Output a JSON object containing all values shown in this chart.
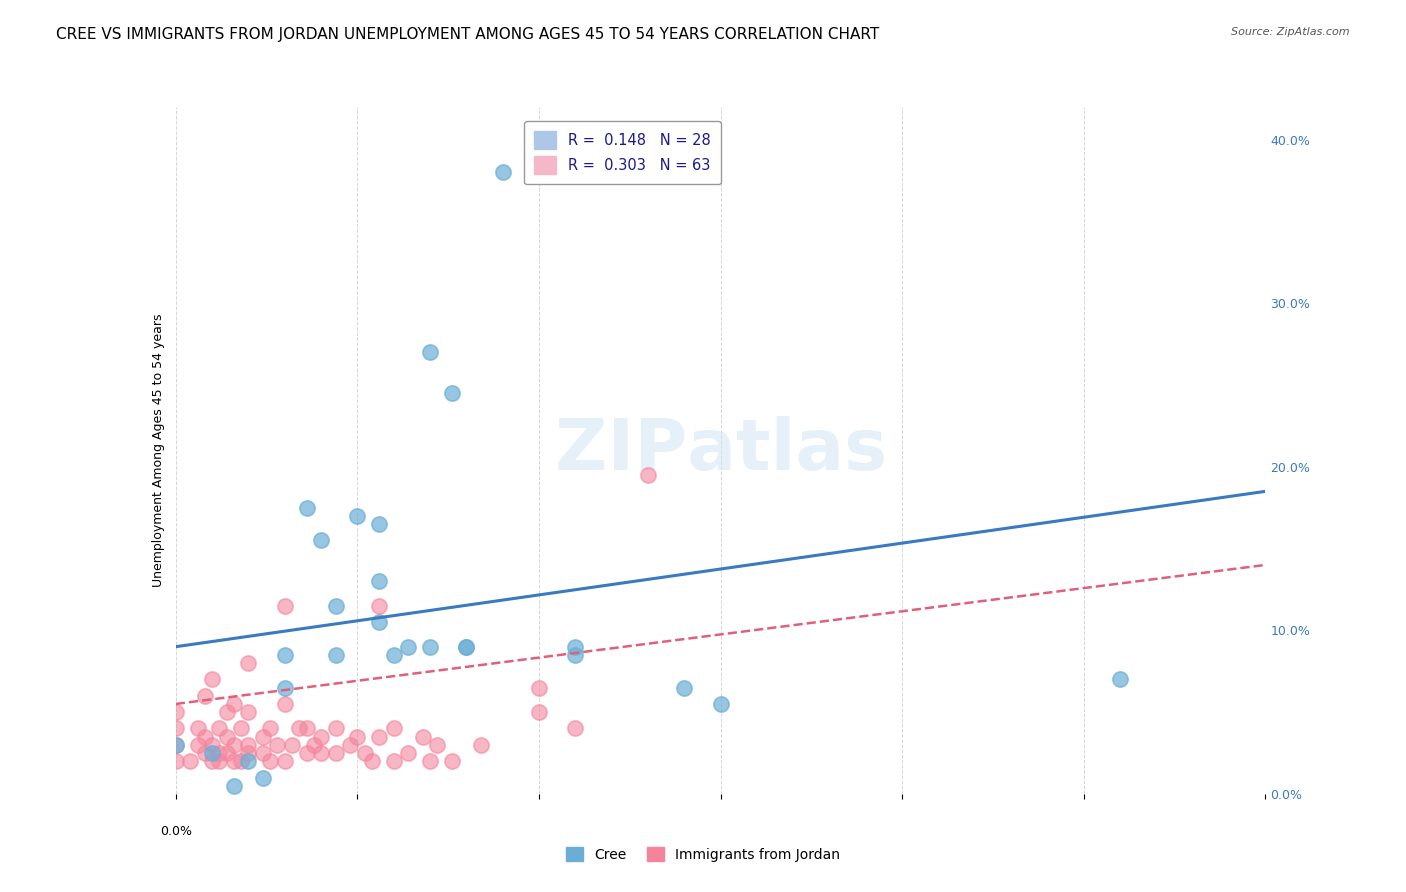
{
  "title": "CREE VS IMMIGRANTS FROM JORDAN UNEMPLOYMENT AMONG AGES 45 TO 54 YEARS CORRELATION CHART",
  "source": "Source: ZipAtlas.com",
  "ylabel": "Unemployment Among Ages 45 to 54 years",
  "ylabel_right_ticks": [
    "0.0%",
    "10.0%",
    "20.0%",
    "30.0%",
    "40.0%"
  ],
  "ylabel_right_vals": [
    0.0,
    0.1,
    0.2,
    0.3,
    0.4
  ],
  "xlim": [
    0.0,
    0.15
  ],
  "ylim": [
    0.0,
    0.42
  ],
  "cree_color": "#6aaed6",
  "jordan_color": "#f4849c",
  "cree_line_color": "#3a7abf",
  "jordan_line_color": "#e0607a",
  "cree_scatter": [
    [
      0.0,
      0.03
    ],
    [
      0.01,
      0.02
    ],
    [
      0.005,
      0.025
    ],
    [
      0.008,
      0.005
    ],
    [
      0.012,
      0.01
    ],
    [
      0.015,
      0.065
    ],
    [
      0.015,
      0.085
    ],
    [
      0.018,
      0.175
    ],
    [
      0.02,
      0.155
    ],
    [
      0.022,
      0.085
    ],
    [
      0.022,
      0.115
    ],
    [
      0.025,
      0.17
    ],
    [
      0.028,
      0.13
    ],
    [
      0.028,
      0.105
    ],
    [
      0.028,
      0.165
    ],
    [
      0.03,
      0.085
    ],
    [
      0.032,
      0.09
    ],
    [
      0.035,
      0.09
    ],
    [
      0.035,
      0.27
    ],
    [
      0.038,
      0.245
    ],
    [
      0.04,
      0.09
    ],
    [
      0.04,
      0.09
    ],
    [
      0.045,
      0.38
    ],
    [
      0.055,
      0.09
    ],
    [
      0.055,
      0.085
    ],
    [
      0.07,
      0.065
    ],
    [
      0.075,
      0.055
    ],
    [
      0.13,
      0.07
    ]
  ],
  "jordan_scatter": [
    [
      0.0,
      0.02
    ],
    [
      0.0,
      0.03
    ],
    [
      0.0,
      0.04
    ],
    [
      0.0,
      0.05
    ],
    [
      0.002,
      0.02
    ],
    [
      0.003,
      0.03
    ],
    [
      0.003,
      0.04
    ],
    [
      0.004,
      0.025
    ],
    [
      0.004,
      0.035
    ],
    [
      0.004,
      0.06
    ],
    [
      0.005,
      0.02
    ],
    [
      0.005,
      0.03
    ],
    [
      0.005,
      0.07
    ],
    [
      0.006,
      0.02
    ],
    [
      0.006,
      0.025
    ],
    [
      0.006,
      0.04
    ],
    [
      0.007,
      0.025
    ],
    [
      0.007,
      0.035
    ],
    [
      0.007,
      0.05
    ],
    [
      0.008,
      0.02
    ],
    [
      0.008,
      0.03
    ],
    [
      0.008,
      0.055
    ],
    [
      0.009,
      0.02
    ],
    [
      0.009,
      0.04
    ],
    [
      0.01,
      0.025
    ],
    [
      0.01,
      0.03
    ],
    [
      0.01,
      0.05
    ],
    [
      0.01,
      0.08
    ],
    [
      0.012,
      0.025
    ],
    [
      0.012,
      0.035
    ],
    [
      0.013,
      0.02
    ],
    [
      0.013,
      0.04
    ],
    [
      0.014,
      0.03
    ],
    [
      0.015,
      0.02
    ],
    [
      0.015,
      0.055
    ],
    [
      0.015,
      0.115
    ],
    [
      0.016,
      0.03
    ],
    [
      0.017,
      0.04
    ],
    [
      0.018,
      0.025
    ],
    [
      0.018,
      0.04
    ],
    [
      0.019,
      0.03
    ],
    [
      0.02,
      0.025
    ],
    [
      0.02,
      0.035
    ],
    [
      0.022,
      0.025
    ],
    [
      0.022,
      0.04
    ],
    [
      0.024,
      0.03
    ],
    [
      0.025,
      0.035
    ],
    [
      0.026,
      0.025
    ],
    [
      0.027,
      0.02
    ],
    [
      0.028,
      0.035
    ],
    [
      0.028,
      0.115
    ],
    [
      0.03,
      0.02
    ],
    [
      0.03,
      0.04
    ],
    [
      0.032,
      0.025
    ],
    [
      0.034,
      0.035
    ],
    [
      0.035,
      0.02
    ],
    [
      0.036,
      0.03
    ],
    [
      0.038,
      0.02
    ],
    [
      0.042,
      0.03
    ],
    [
      0.05,
      0.05
    ],
    [
      0.05,
      0.065
    ],
    [
      0.055,
      0.04
    ],
    [
      0.065,
      0.195
    ]
  ],
  "cree_trendline": [
    [
      0.0,
      0.09
    ],
    [
      0.15,
      0.185
    ]
  ],
  "jordan_trendline": [
    [
      0.0,
      0.055
    ],
    [
      0.15,
      0.14
    ]
  ],
  "background_color": "#ffffff",
  "grid_color": "#cccccc",
  "title_fontsize": 11,
  "axis_fontsize": 9,
  "tick_fontsize": 9
}
